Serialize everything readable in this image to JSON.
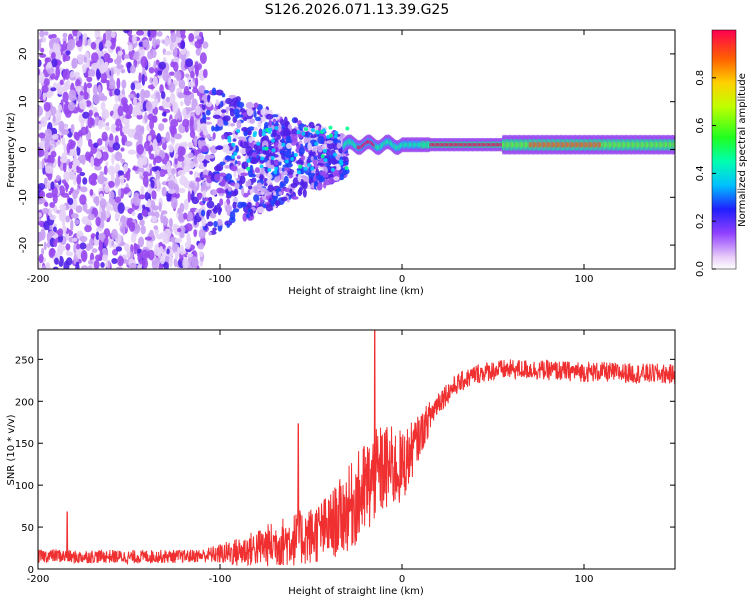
{
  "title": "S126.2026.071.13.39.G25",
  "chart_data": [
    {
      "type": "heatmap",
      "xlabel": "Height of straight line (km)",
      "ylabel": "Frequency (Hz)",
      "xlim": [
        -200,
        150
      ],
      "ylim": [
        -25,
        25
      ],
      "xticks": [
        "-200",
        "-100",
        "0",
        "100"
      ],
      "yticks": [
        "20",
        "10",
        "0",
        "-10",
        "-20"
      ],
      "colorbar": {
        "label": "Normalized spectral amplitude",
        "range": [
          0,
          1
        ],
        "ticks": [
          "0.0",
          "0.2",
          "0.4",
          "0.6",
          "0.8"
        ]
      },
      "description_regions": [
        {
          "x_range": [
            -200,
            -110
          ],
          "pattern": "scattered low-amplitude blobs across all frequencies"
        },
        {
          "x_range": [
            -110,
            -30
          ],
          "pattern": "medium-amplitude blobs converging toward 0 Hz"
        },
        {
          "x_range": [
            -30,
            150
          ],
          "pattern": "narrow high-amplitude band near 1 Hz"
        }
      ]
    },
    {
      "type": "line",
      "xlabel": "Height of straight line (km)",
      "ylabel": "SNR (10 * v/v)",
      "xlim": [
        -200,
        150
      ],
      "ylim": [
        0,
        285
      ],
      "xticks": [
        "-200",
        "-100",
        "0",
        "100"
      ],
      "yticks": [
        "0",
        "50",
        "100",
        "150",
        "200",
        "250"
      ],
      "color": "#f03030",
      "series": [
        {
          "name": "SNR",
          "x": [
            -200,
            -190,
            -180,
            -170,
            -160,
            -150,
            -140,
            -130,
            -120,
            -110,
            -100,
            -90,
            -80,
            -70,
            -60,
            -50,
            -40,
            -30,
            -20,
            -10,
            0,
            10,
            20,
            30,
            40,
            50,
            60,
            70,
            80,
            90,
            100,
            110,
            120,
            130,
            140,
            150
          ],
          "values": [
            15,
            16,
            14,
            15,
            15,
            14,
            15,
            15,
            15,
            16,
            18,
            20,
            25,
            30,
            35,
            40,
            50,
            70,
            95,
            120,
            120,
            160,
            200,
            220,
            232,
            237,
            238,
            238,
            237,
            236,
            235,
            235,
            234,
            233,
            233,
            232
          ],
          "noise_amplitude": [
            8,
            8,
            8,
            8,
            8,
            8,
            8,
            8,
            8,
            8,
            12,
            18,
            22,
            28,
            32,
            35,
            40,
            50,
            60,
            55,
            45,
            25,
            15,
            12,
            12,
            12,
            12,
            12,
            12,
            12,
            12,
            12,
            12,
            12,
            12,
            12
          ],
          "spikes": [
            {
              "x": -184,
              "y": 68
            },
            {
              "x": -57,
              "y": 173
            },
            {
              "x": -15,
              "y": 285
            }
          ]
        }
      ]
    }
  ]
}
